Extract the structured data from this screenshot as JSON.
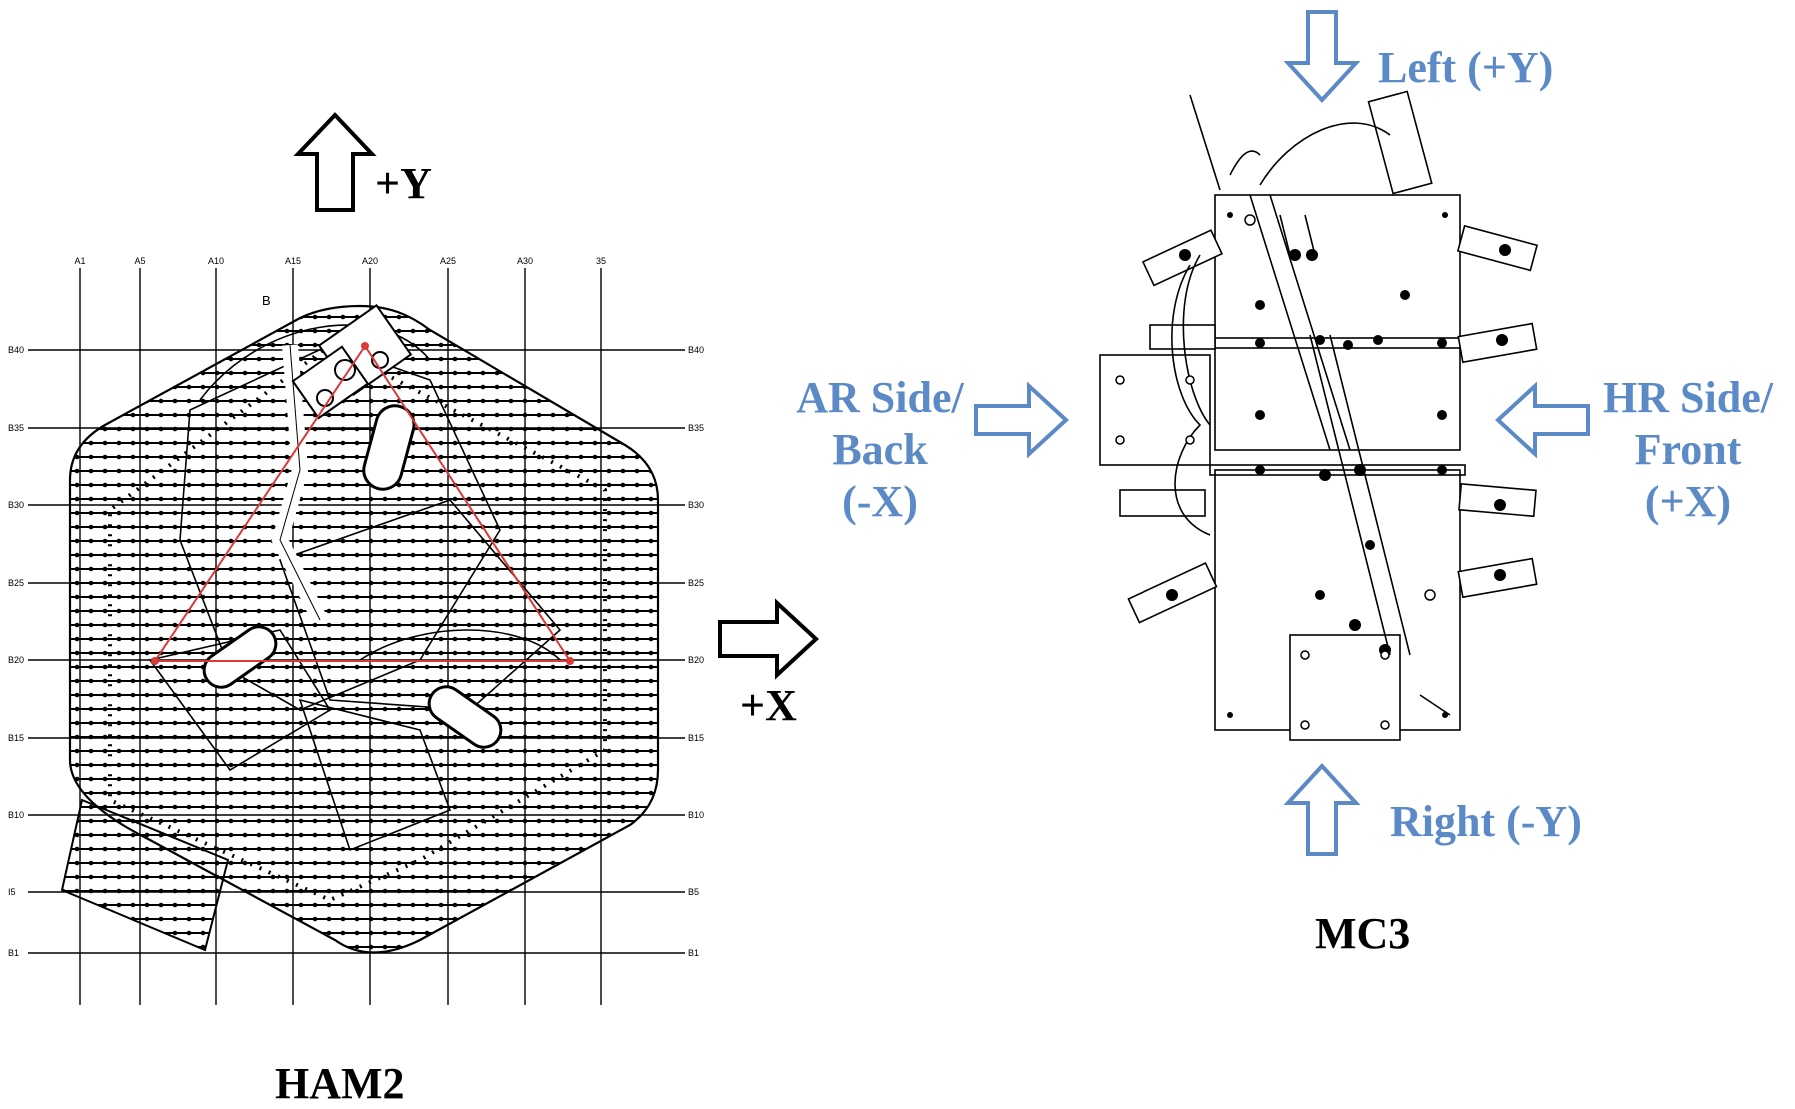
{
  "ham2": {
    "caption": "HAM2",
    "axis_y": "+Y",
    "axis_x": "+X",
    "col_labels": [
      "A1",
      "A5",
      "A10",
      "A15",
      "A20",
      "A25",
      "A30",
      "35"
    ],
    "row_labels_left": [
      "B40",
      "B35",
      "B30",
      "B25",
      "B20",
      "B15",
      "B10",
      "I5",
      "B1"
    ],
    "row_labels_right": [
      "B40",
      "B35",
      "B30",
      "B25",
      "B20",
      "B15",
      "B10",
      "B5",
      "B1"
    ],
    "mark_b": "B"
  },
  "mc3": {
    "caption": "MC3",
    "left": "Left (+Y)",
    "right": "Right (-Y)",
    "ar_line1": "AR Side/",
    "ar_line2": "Back",
    "ar_line3": "(-X)",
    "hr_line1": "HR Side/",
    "hr_line2": "Front",
    "hr_line3": "(+X)"
  },
  "colors": {
    "arrow_blue": "#5b8ac6",
    "triangle_red": "#d83a3a",
    "line": "#000000"
  }
}
